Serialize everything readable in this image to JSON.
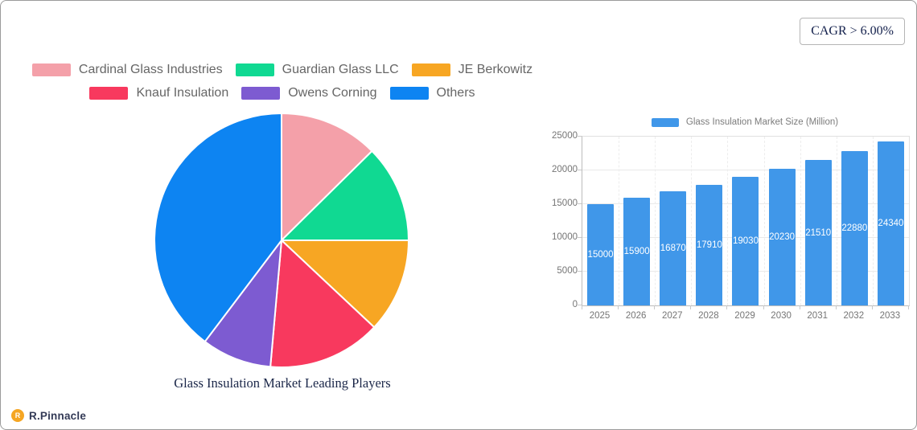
{
  "page": {
    "cagr_badge": "CAGR > 6.00%",
    "brand_name": "R.Pinnacle",
    "brand_logo_letter": "R"
  },
  "colors": {
    "brand_orange": "#F5A623",
    "brand_text": "#333A56",
    "axis_text": "#757575",
    "legend_text": "#666666",
    "title_navy": "#1B2749"
  },
  "chart_data": [
    {
      "type": "pie",
      "title": "Glass Insulation Market Leading Players",
      "legend_position": "top",
      "units": "percent",
      "start_angle_deg": 0,
      "clockwise": true,
      "series": [
        {
          "name": "Cardinal Glass Industries",
          "value": 12.6,
          "color": "#F4A0A9"
        },
        {
          "name": "Guardian Glass LLC",
          "value": 12.4,
          "color": "#10D992"
        },
        {
          "name": "JE Berkowitz",
          "value": 12.0,
          "color": "#F7A623"
        },
        {
          "name": "Knauf Insulation",
          "value": 14.4,
          "color": "#F8395E"
        },
        {
          "name": "Owens Corning",
          "value": 8.9,
          "color": "#7D5BD1"
        },
        {
          "name": "Others",
          "value": 39.7,
          "color": "#0D84F2"
        }
      ]
    },
    {
      "type": "bar",
      "legend": "Glass Insulation Market Size (Million)",
      "categories": [
        "2025",
        "2026",
        "2027",
        "2028",
        "2029",
        "2030",
        "2031",
        "2032",
        "2033"
      ],
      "values": [
        15000,
        15900,
        16870,
        17910,
        19030,
        20230,
        21510,
        22880,
        24340
      ],
      "ylim": [
        0,
        25000
      ],
      "yticks": [
        0,
        5000,
        10000,
        15000,
        20000,
        25000
      ],
      "bar_color": "#4097E9",
      "value_label_color": "#FFFFFF",
      "grid": true,
      "legend_position": "top"
    }
  ]
}
